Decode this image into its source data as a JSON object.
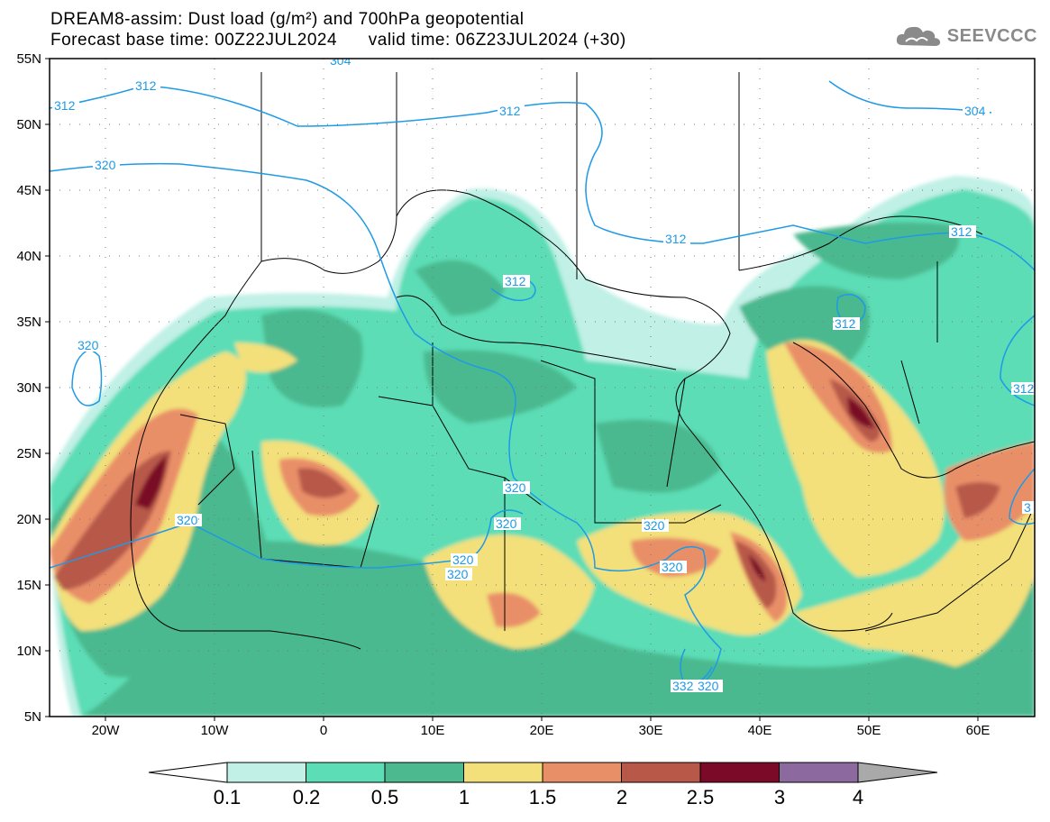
{
  "header": {
    "title_line1": "DREAM8-assim: Dust load (g/m²) and 700hPa geopotential",
    "title_line2_left": "Forecast base time: 00Z22JUL2024",
    "title_line2_right": "valid time: 06Z23JUL2024 (+30)"
  },
  "logo": {
    "text": "SEEVCCC",
    "icon": "cloud-icon"
  },
  "map": {
    "lat_labels": [
      "55N",
      "50N",
      "45N",
      "40N",
      "35N",
      "30N",
      "25N",
      "20N",
      "15N",
      "10N",
      "5N"
    ],
    "lon_labels": [
      "20W",
      "10W",
      "0",
      "10E",
      "20E",
      "30E",
      "40E",
      "50E",
      "60E"
    ],
    "contour_labels": [
      "304",
      "312",
      "312",
      "312",
      "312",
      "312",
      "312",
      "320",
      "320",
      "320",
      "320",
      "320",
      "320",
      "320",
      "320",
      "320",
      "332",
      "320",
      "304",
      "312",
      "312",
      "3"
    ]
  },
  "colorbar": {
    "tick_labels": [
      "0.1",
      "0.2",
      "0.5",
      "1",
      "1.5",
      "2",
      "2.5",
      "3",
      "4"
    ],
    "colors": [
      "#c0f0e6",
      "#5cddb5",
      "#4cb98f",
      "#f3e07a",
      "#e98f68",
      "#b75848",
      "#7a0a28",
      "#8c6aa0",
      "#a9a9a9"
    ],
    "unit": "g/m²"
  },
  "colors": {
    "contour": "#1e9ae6",
    "coast": "#000000"
  }
}
